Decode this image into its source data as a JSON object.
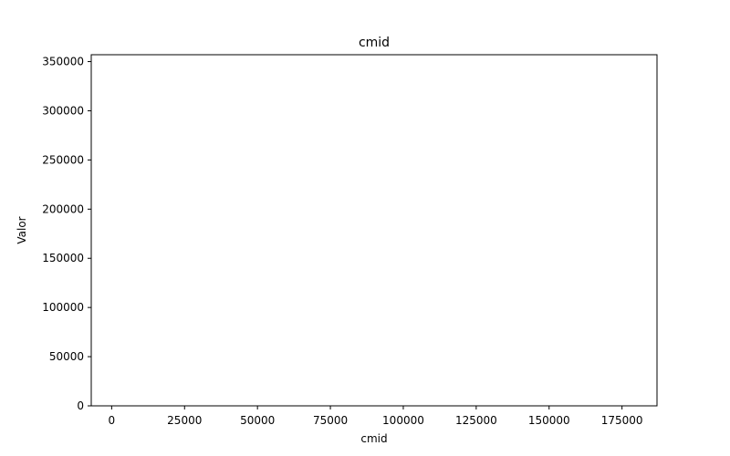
{
  "chart_data": {
    "type": "bar",
    "title": "cmid",
    "xlabel": "cmid",
    "ylabel": "Valor",
    "xlim": [
      -7000,
      187000
    ],
    "ylim": [
      0,
      357000
    ],
    "x_ticks": [
      0,
      25000,
      50000,
      75000,
      100000,
      125000,
      150000,
      175000
    ],
    "y_ticks": [
      0,
      50000,
      100000,
      150000,
      200000,
      250000,
      300000,
      350000
    ],
    "x": [],
    "values": [],
    "grid": false,
    "legend": "none"
  },
  "colors": {
    "bar": "#1f77b4",
    "axis": "#000000",
    "background": "#ffffff"
  }
}
